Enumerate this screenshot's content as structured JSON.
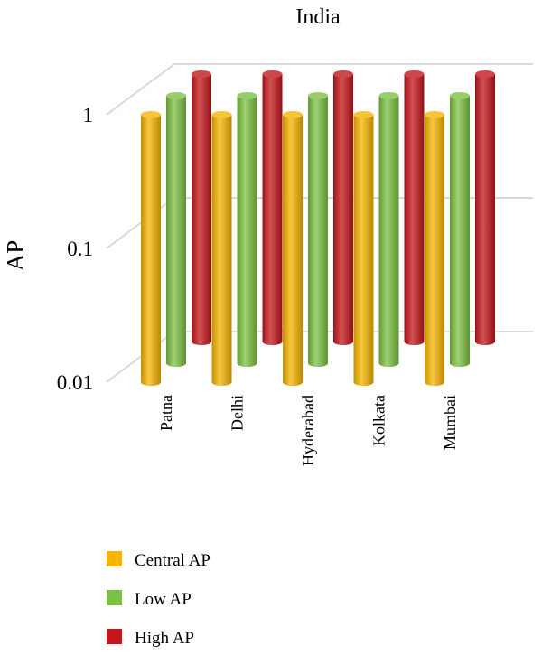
{
  "chart_data": {
    "type": "bar",
    "title": "India",
    "ylabel": "AP",
    "xlabel": "",
    "yscale": "log",
    "ylim": [
      0.01,
      1
    ],
    "yticks": [
      {
        "value": 0.01,
        "label": "0.01"
      },
      {
        "value": 0.1,
        "label": "0.1"
      },
      {
        "value": 1,
        "label": "1"
      }
    ],
    "grid": true,
    "legend": "bottom-left",
    "categories": [
      "Patna",
      "Delhi",
      "Hyderabad",
      "Kolkata",
      "Mumbai"
    ],
    "series": [
      {
        "name": "Central AP",
        "color": "#f7b500",
        "values": [
          1,
          1,
          1,
          1,
          1
        ]
      },
      {
        "name": "Low AP",
        "color": "#7cc242",
        "values": [
          1,
          1,
          1,
          1,
          1
        ]
      },
      {
        "name": "High AP",
        "color": "#c4161c",
        "values": [
          1,
          1,
          1,
          1,
          1
        ]
      }
    ]
  }
}
